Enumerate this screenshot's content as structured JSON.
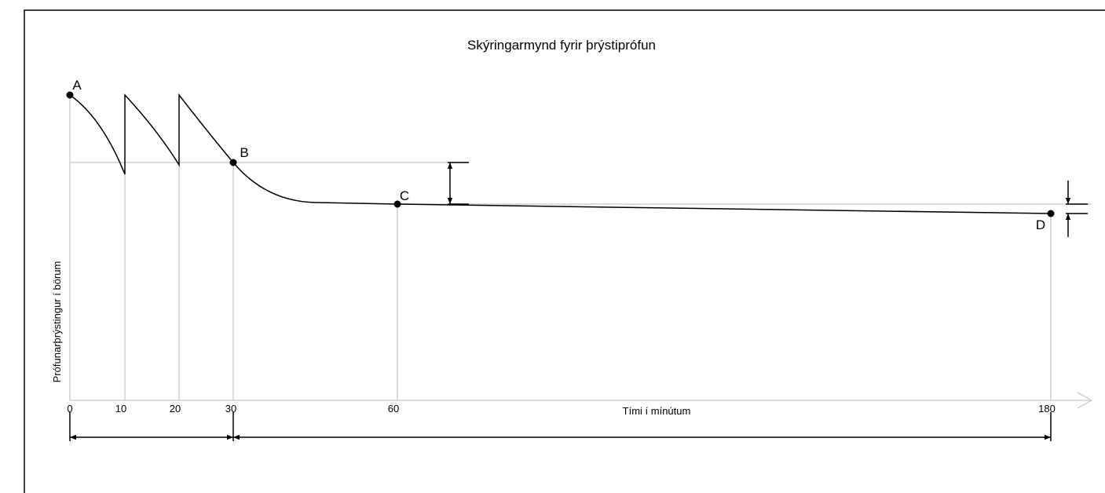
{
  "title": "Skýringarmynd fyrir þrýstiprófun",
  "x_label": "Tími í mínútum",
  "y_label": "Prófunarþrýstingur í börum",
  "x_ticks": [
    "0",
    "10",
    "20",
    "30",
    "60",
    "180"
  ],
  "points": [
    "A",
    "B",
    "C",
    "D"
  ]
}
